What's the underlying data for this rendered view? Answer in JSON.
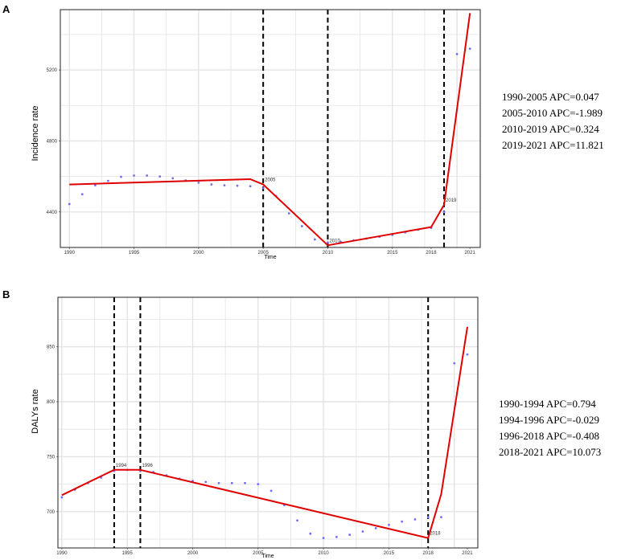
{
  "chart_data": [
    {
      "panel": "A",
      "type": "line",
      "xlabel": "Time",
      "ylabel": "Incidence rate",
      "xlim": [
        1989.3,
        2021.8
      ],
      "ylim": [
        4200,
        5540
      ],
      "xticks": [
        1990,
        1995,
        2000,
        2005,
        2010,
        2015,
        2018,
        2021
      ],
      "yticks": [
        4400,
        4800,
        5200
      ],
      "observed": {
        "x": [
          1990,
          1991,
          1992,
          1993,
          1994,
          1995,
          1996,
          1997,
          1998,
          1999,
          2000,
          2001,
          2002,
          2003,
          2004,
          2005,
          2006,
          2007,
          2008,
          2009,
          2010,
          2011,
          2012,
          2013,
          2014,
          2015,
          2016,
          2017,
          2018,
          2019,
          2020,
          2021
        ],
        "y": [
          4445,
          4500,
          4550,
          4575,
          4598,
          4605,
          4605,
          4600,
          4590,
          4578,
          4565,
          4555,
          4550,
          4548,
          4545,
          4535,
          4490,
          4392,
          4320,
          4245,
          4228,
          4232,
          4240,
          4250,
          4260,
          4270,
          4285,
          4300,
          4310,
          4400,
          5290,
          5320
        ]
      },
      "fitted": {
        "x": [
          1990,
          2004,
          2005,
          2010,
          2018,
          2019,
          2021
        ],
        "y": [
          4555,
          4585,
          4555,
          4212,
          4315,
          4440,
          5520
        ]
      },
      "joinpoints": [
        {
          "x": 2005,
          "label": "2005"
        },
        {
          "x": 2010,
          "label": "2010"
        },
        {
          "x": 2019,
          "label": "2019"
        }
      ],
      "apc": [
        "1990-2005 APC=0.047",
        "2005-2010 APC=-1.989",
        "2010-2019 APC=0.324",
        "2019-2021 APC=11.821"
      ]
    },
    {
      "panel": "B",
      "type": "line",
      "xlabel": "Time",
      "ylabel": "DALYs rate",
      "xlim": [
        1989.7,
        2021.8
      ],
      "ylim": [
        667,
        895
      ],
      "xticks": [
        1990,
        1995,
        2000,
        2005,
        2010,
        2015,
        2018,
        2021
      ],
      "yticks": [
        700,
        750,
        800,
        850
      ],
      "observed": {
        "x": [
          1990,
          1991,
          1992,
          1993,
          1994,
          1995,
          1996,
          1997,
          1998,
          1999,
          2000,
          2001,
          2002,
          2003,
          2004,
          2005,
          2006,
          2007,
          2008,
          2009,
          2010,
          2011,
          2012,
          2013,
          2014,
          2015,
          2016,
          2017,
          2018,
          2019,
          2020,
          2021
        ],
        "y": [
          713,
          720,
          726,
          731,
          737,
          738,
          737,
          736,
          733,
          730,
          728,
          727,
          726,
          726,
          726,
          725,
          719,
          706,
          692,
          680,
          676,
          677,
          679,
          682,
          685,
          688,
          691,
          693,
          695,
          695,
          835,
          843
        ]
      },
      "fitted": {
        "x": [
          1990,
          1994,
          1996,
          2018,
          2019,
          2021
        ],
        "y": [
          715,
          738,
          738,
          676,
          716,
          868
        ]
      },
      "joinpoints": [
        {
          "x": 1994,
          "label": "1994"
        },
        {
          "x": 1996,
          "label": "1996"
        },
        {
          "x": 2018,
          "label": "2018"
        }
      ],
      "apc": [
        "1990-1994 APC=0.794",
        "1994-1996 APC=-0.029",
        "1996-2018 APC=-0.408",
        "2018-2021 APC=10.073"
      ]
    }
  ],
  "colors": {
    "observed": "#6f6fff",
    "fitted": "#e00000",
    "joinpoint_line": "#000000",
    "grid": "#e4e4e4",
    "panel_border": "#222222"
  }
}
